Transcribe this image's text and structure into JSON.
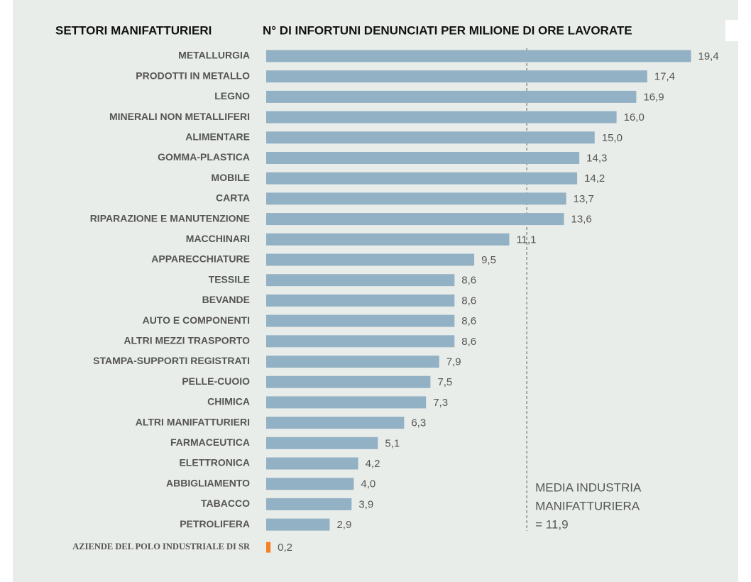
{
  "chart_data": {
    "type": "bar",
    "orientation": "horizontal",
    "category_axis_label": "SETTORI MANIFATTURIERI",
    "title": "N° DI INFORTUNI DENUNCIATI PER MILIONE DI ORE LAVORATE",
    "categories": [
      "METALLURGIA",
      "PRODOTTI IN METALLO",
      "LEGNO",
      "MINERALI NON METALLIFERI",
      "ALIMENTARE",
      "GOMMA-PLASTICA",
      "MOBILE",
      "CARTA",
      "RIPARAZIONE E MANUTENZIONE",
      "MACCHINARI",
      "APPARECCHIATURE",
      "TESSILE",
      "BEVANDE",
      "AUTO E COMPONENTI",
      "ALTRI MEZZI TRASPORTO",
      "STAMPA-SUPPORTI REGISTRATI",
      "PELLE-CUOIO",
      "CHIMICA",
      "ALTRI MANIFATTURIERI",
      "FARMACEUTICA",
      "ELETTRONICA",
      "ABBIGLIAMENTO",
      "TABACCO",
      "PETROLIFERA",
      "AZIENDE DEL POLO INDUSTRIALE DI SR"
    ],
    "values": [
      19.4,
      17.4,
      16.9,
      16.0,
      15.0,
      14.3,
      14.2,
      13.7,
      13.6,
      11.1,
      9.5,
      8.6,
      8.6,
      8.6,
      8.6,
      7.9,
      7.5,
      7.3,
      6.3,
      5.1,
      4.2,
      4.0,
      3.9,
      2.9,
      0.2
    ],
    "value_labels": [
      "19,4",
      "17,4",
      "16,9",
      "16,0",
      "15,0",
      "14,3",
      "14,2",
      "13,7",
      "13,6",
      "11,1",
      "9,5",
      "8,6",
      "8,6",
      "8,6",
      "8,6",
      "7,9",
      "7,5",
      "7,3",
      "6,3",
      "5,1",
      "4,2",
      "4,0",
      "3,9",
      "2,9",
      "0,2"
    ],
    "colors": [
      "#93b1c5",
      "#93b1c5",
      "#93b1c5",
      "#93b1c5",
      "#93b1c5",
      "#93b1c5",
      "#93b1c5",
      "#93b1c5",
      "#93b1c5",
      "#93b1c5",
      "#93b1c5",
      "#93b1c5",
      "#93b1c5",
      "#93b1c5",
      "#93b1c5",
      "#93b1c5",
      "#93b1c5",
      "#93b1c5",
      "#93b1c5",
      "#93b1c5",
      "#93b1c5",
      "#93b1c5",
      "#93b1c5",
      "#93b1c5",
      "#f58025"
    ],
    "xlim": [
      0,
      20
    ],
    "reference_line": {
      "value": 11.9,
      "label_lines": [
        "MEDIA INDUSTRIA",
        "MANIFATTURIERA",
        "= 11,9"
      ]
    }
  }
}
